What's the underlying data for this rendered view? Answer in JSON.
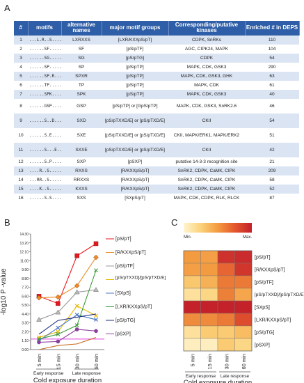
{
  "panels": {
    "a": "A",
    "b": "B",
    "c": "C"
  },
  "table": {
    "headers": [
      "#",
      "motifs",
      "alternative names",
      "major motif groups",
      "Corresponding/putative kinases",
      "Enriched # in DEPS"
    ],
    "rows": [
      {
        "num": "1",
        "motif": "...L.R..S........",
        "alt": "LXRXXS",
        "group": "[LXR/KXXpS/pT]",
        "kinases": "CDPK, SnRKs",
        "enriched": "110"
      },
      {
        "num": "2",
        "motif": "......SF.......",
        "alt": "SF",
        "group": "[pS/pTF]",
        "kinases": "AGC, CIPK24, MAPK",
        "enriched": "104"
      },
      {
        "num": "3",
        "motif": "......SG.......",
        "alt": "SG",
        "group": "[pS/pTG]",
        "kinases": "CDPK",
        "enriched": "54"
      },
      {
        "num": "4",
        "motif": "......SP.......",
        "alt": "SP",
        "group": "[pS/pTP]",
        "kinases": "MAPK, CDK, GSK3",
        "enriched": "290"
      },
      {
        "num": "5",
        "motif": "......SP.R.....",
        "alt": "SPXR",
        "group": "[pS/pTP]",
        "kinases": "MAPK, CDK, GSK3, GHK",
        "enriched": "63"
      },
      {
        "num": "6",
        "motif": "......TP.......",
        "alt": "TP",
        "group": "[pS/pTP]",
        "kinases": "MAPK, CDK",
        "enriched": "61"
      },
      {
        "num": "7",
        "motif": "......SPK......",
        "alt": "SPK",
        "group": "[pS/pTP]",
        "kinases": "MAPK, CDK, GSK3",
        "enriched": "40"
      },
      {
        "num": "8",
        "motif": "......GSP......",
        "alt": "GSP",
        "group": "[pS/pTP] or [GpS/pTP]",
        "kinases": "MAPK, CDK, GSK3, SnRK2.6",
        "enriched": "46"
      },
      {
        "num": "9",
        "motif": "......S..D.....",
        "alt": "SXD",
        "group": "[pS/pTXXD/E] or [pS/pTXD/E]",
        "kinases": "CKII",
        "enriched": "54"
      },
      {
        "num": "10",
        "motif": "......S.E......",
        "alt": "SXE",
        "group": "[pS/pTXXD/E] or [pS/pTXD/E]",
        "kinases": "CKII, MAPK/ERK1, MAPK/ERK2",
        "enriched": "51"
      },
      {
        "num": "11",
        "motif": "......S...E....",
        "alt": "SXXE",
        "group": "[pS/pTXXD/E] or [pS/pTXD/E]",
        "kinases": "CKII",
        "enriched": "42"
      },
      {
        "num": "12",
        "motif": "......S.P......",
        "alt": "SXP",
        "group": "[pSXP]",
        "kinases": "putative 14-3-3 recognition site",
        "enriched": "21"
      },
      {
        "num": "13",
        "motif": "....R..S.......",
        "alt": "RXXS",
        "group": "[R/KXXpS/pT]",
        "kinases": "SnRK2, CDPK, CaMK, CIPK",
        "enriched": "209"
      },
      {
        "num": "14",
        "motif": "...RR..S.......",
        "alt": "RRXXS",
        "group": "[R/KXXpS/pT]",
        "kinases": "SnRK2, CDPK, CaMK, CIPK",
        "enriched": "58"
      },
      {
        "num": "15",
        "motif": "....K..S.......",
        "alt": "KXXS",
        "group": "[R/KXXpS/pT]",
        "kinases": "SnRK2, CDPK, CaMK, CIPK",
        "enriched": "52"
      },
      {
        "num": "16",
        "motif": "......S.S......",
        "alt": "SXS",
        "group": "[SXpS/pT]",
        "kinases": "MAPK, CDK, CDPK, RLK, RLCK",
        "enriched": "87"
      }
    ]
  },
  "chart_data": [
    {
      "type": "line",
      "ylabel": "-log10 P -value",
      "xlabel": "Cold exposure duration",
      "x": [
        "5 min",
        "15 min",
        "30 min",
        "60 min"
      ],
      "x_groups": [
        "Early response",
        "Late response"
      ],
      "yticks": [
        "0.00",
        "1.10",
        "2.20",
        "3.30",
        "4.40",
        "5.50",
        "6.60",
        "7.70",
        "8.80",
        "9.90",
        "11.00",
        "12.10",
        "13.20",
        "14.30"
      ],
      "ylim": [
        0,
        14.3
      ],
      "threshold": 1.3,
      "threshold_color": "#e040e0",
      "series": [
        {
          "name": "[pS/pT]",
          "color": "#e8161e",
          "marker": "square",
          "values": [
            6.6,
            5.7,
            11.6,
            13.1
          ]
        },
        {
          "name": "[R/KXXpS/pT]",
          "color": "#ee8a2a",
          "marker": "diamond",
          "values": [
            6.4,
            6.5,
            7.9,
            11.4
          ]
        },
        {
          "name": "[pS/pTF]",
          "color": "#999999",
          "marker": "triangle",
          "values": [
            3.7,
            4.6,
            7.1,
            7.4
          ]
        },
        {
          "name": "[pS/pTXXD]/[pS/pTXD/E]",
          "color": "#e6b800",
          "marker": "x",
          "values": [
            1.5,
            2.2,
            5.4,
            4.2
          ]
        },
        {
          "name": "[SXpS]",
          "color": "#4a78c8",
          "marker": "x",
          "values": [
            1.1,
            2.7,
            4.3,
            3.7
          ]
        },
        {
          "name": "[LXR/KXXpS/pT]",
          "color": "#3e9b3e",
          "marker": "x",
          "values": [
            1.3,
            1.9,
            3.0,
            9.8
          ]
        },
        {
          "name": "[pS/pTG]",
          "color": "#1f2d7a",
          "marker": "line",
          "values": [
            1.9,
            3.6,
            4.0,
            4.4
          ]
        },
        {
          "name": "[pSXP]",
          "color": "#8a3e9e",
          "marker": "circle",
          "values": [
            0.9,
            1.0,
            2.5,
            2.3
          ]
        },
        {
          "name": "",
          "color": "#c86a1c",
          "marker": "line",
          "values": [
            0.0,
            0.5,
            0.7,
            1.5
          ]
        }
      ]
    },
    {
      "type": "heatmap",
      "xlabel": "Cold exposure duration",
      "x": [
        "5 min",
        "15 min",
        "30 min",
        "60 min"
      ],
      "x_groups": [
        "Early response",
        "Late response"
      ],
      "scale_min_label": "Min.",
      "scale_max_label": "Max.",
      "scale_colors": [
        "#fff5d0",
        "#fbd27a",
        "#f39b40",
        "#e4572e",
        "#c3202b"
      ],
      "rows": [
        "[pS/pT]",
        "[R/KXXpS/pT]",
        "[pS/pTF]",
        "[pS/pTXXD]/[pS/pTXD/E]",
        "[SXpS]",
        "[LXR/KXXpS/pT]",
        "[pS/pTG]",
        "[pSXP]"
      ],
      "values": [
        [
          0.5,
          0.48,
          0.92,
          0.95
        ],
        [
          0.48,
          0.5,
          0.7,
          0.9
        ],
        [
          0.3,
          0.4,
          0.62,
          0.62
        ],
        [
          0.15,
          0.22,
          0.6,
          0.45
        ],
        [
          0.99,
          0.99,
          0.99,
          0.99
        ],
        [
          0.56,
          0.56,
          0.62,
          0.8
        ],
        [
          0.15,
          0.28,
          0.28,
          0.35
        ],
        [
          0.05,
          0.05,
          0.28,
          0.22
        ]
      ]
    }
  ]
}
